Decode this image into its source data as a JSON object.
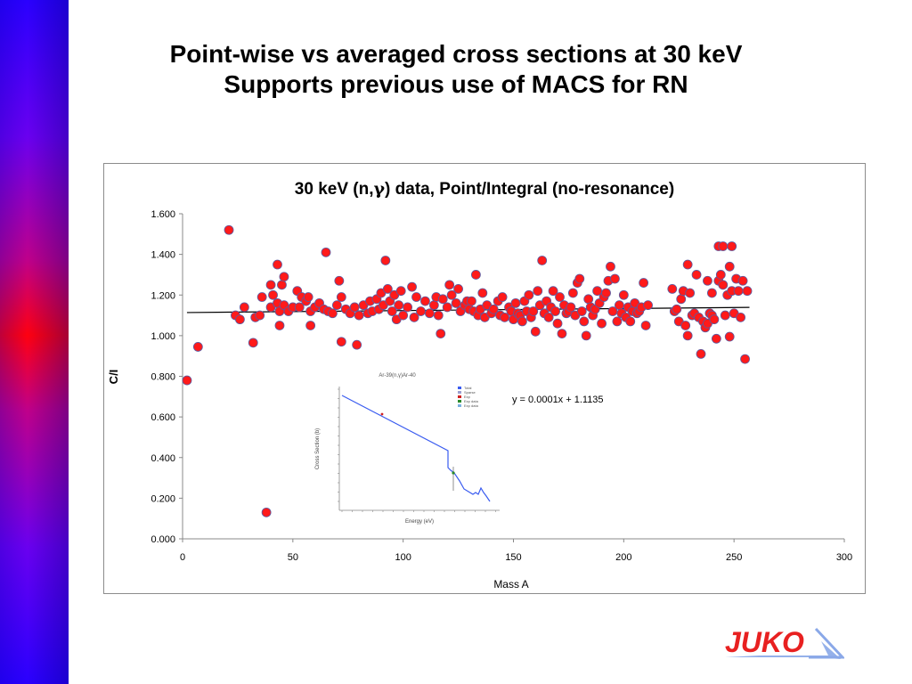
{
  "slide": {
    "title_line1": "Point-wise vs averaged cross sections at 30 keV",
    "title_line2": "Supports previous use of MACS for RN",
    "logo_text": "JUKO"
  },
  "colors": {
    "marker": "#ff1a1a",
    "marker_edge": "#5a5aa0",
    "trend": "#000000",
    "inset_line": "#3a5cf0",
    "logo": "#e82020"
  },
  "chart_data": {
    "type": "scatter",
    "title_pre": "30 keV (n,",
    "title_gamma": "γ",
    "title_post": ") data, Point/Integral (no-resonance)",
    "xlabel": "Mass A",
    "ylabel": "C/I",
    "xlim": [
      0,
      300
    ],
    "ylim": [
      0,
      1.6
    ],
    "xticks": [
      "0",
      "50",
      "100",
      "150",
      "200",
      "250",
      "300"
    ],
    "yticks": [
      "0.000",
      "0.200",
      "0.400",
      "0.600",
      "0.800",
      "1.000",
      "1.200",
      "1.400",
      "1.600"
    ],
    "trendline": {
      "equation": "y = 0.0001x + 1.1135",
      "x": [
        2,
        257
      ],
      "y": [
        1.1137,
        1.1392
      ]
    },
    "points": [
      [
        2,
        0.78
      ],
      [
        7,
        0.945
      ],
      [
        21,
        1.52
      ],
      [
        24,
        1.1
      ],
      [
        26,
        1.08
      ],
      [
        28,
        1.14
      ],
      [
        32,
        0.965
      ],
      [
        33,
        1.09
      ],
      [
        35,
        1.1
      ],
      [
        36,
        1.19
      ],
      [
        38,
        0.13
      ],
      [
        40,
        1.14
      ],
      [
        40,
        1.25
      ],
      [
        41,
        1.2
      ],
      [
        43,
        1.16
      ],
      [
        43,
        1.35
      ],
      [
        44,
        1.05
      ],
      [
        44,
        1.12
      ],
      [
        45,
        1.25
      ],
      [
        46,
        1.29
      ],
      [
        46,
        1.15
      ],
      [
        48,
        1.12
      ],
      [
        50,
        1.14
      ],
      [
        52,
        1.22
      ],
      [
        53,
        1.14
      ],
      [
        54,
        1.19
      ],
      [
        56,
        1.17
      ],
      [
        57,
        1.19
      ],
      [
        58,
        1.05
      ],
      [
        58,
        1.12
      ],
      [
        60,
        1.14
      ],
      [
        62,
        1.16
      ],
      [
        64,
        1.13
      ],
      [
        65,
        1.41
      ],
      [
        66,
        1.12
      ],
      [
        68,
        1.11
      ],
      [
        70,
        1.15
      ],
      [
        71,
        1.27
      ],
      [
        72,
        1.19
      ],
      [
        72,
        0.97
      ],
      [
        74,
        1.13
      ],
      [
        76,
        1.11
      ],
      [
        78,
        1.14
      ],
      [
        79,
        0.955
      ],
      [
        80,
        1.1
      ],
      [
        82,
        1.15
      ],
      [
        84,
        1.11
      ],
      [
        85,
        1.17
      ],
      [
        86,
        1.12
      ],
      [
        88,
        1.18
      ],
      [
        89,
        1.13
      ],
      [
        90,
        1.21
      ],
      [
        91,
        1.15
      ],
      [
        92,
        1.37
      ],
      [
        93,
        1.23
      ],
      [
        94,
        1.17
      ],
      [
        95,
        1.12
      ],
      [
        96,
        1.2
      ],
      [
        97,
        1.08
      ],
      [
        98,
        1.15
      ],
      [
        99,
        1.22
      ],
      [
        100,
        1.1
      ],
      [
        102,
        1.14
      ],
      [
        104,
        1.24
      ],
      [
        105,
        1.09
      ],
      [
        106,
        1.19
      ],
      [
        108,
        1.12
      ],
      [
        110,
        1.17
      ],
      [
        112,
        1.11
      ],
      [
        114,
        1.15
      ],
      [
        115,
        1.19
      ],
      [
        116,
        1.1
      ],
      [
        117,
        1.01
      ],
      [
        118,
        1.18
      ],
      [
        120,
        1.14
      ],
      [
        121,
        1.25
      ],
      [
        122,
        1.2
      ],
      [
        124,
        1.16
      ],
      [
        125,
        1.23
      ],
      [
        126,
        1.12
      ],
      [
        128,
        1.15
      ],
      [
        129,
        1.17
      ],
      [
        130,
        1.13
      ],
      [
        131,
        1.17
      ],
      [
        132,
        1.12
      ],
      [
        133,
        1.3
      ],
      [
        134,
        1.1
      ],
      [
        135,
        1.13
      ],
      [
        136,
        1.21
      ],
      [
        137,
        1.09
      ],
      [
        138,
        1.15
      ],
      [
        140,
        1.11
      ],
      [
        141,
        1.13
      ],
      [
        143,
        1.17
      ],
      [
        144,
        1.1
      ],
      [
        145,
        1.19
      ],
      [
        146,
        1.09
      ],
      [
        148,
        1.14
      ],
      [
        149,
        1.12
      ],
      [
        150,
        1.08
      ],
      [
        151,
        1.16
      ],
      [
        152,
        1.11
      ],
      [
        153,
        1.1
      ],
      [
        154,
        1.07
      ],
      [
        155,
        1.17
      ],
      [
        156,
        1.12
      ],
      [
        157,
        1.2
      ],
      [
        158,
        1.09
      ],
      [
        159,
        1.12
      ],
      [
        160,
        1.02
      ],
      [
        161,
        1.22
      ],
      [
        162,
        1.15
      ],
      [
        163,
        1.37
      ],
      [
        164,
        1.11
      ],
      [
        165,
        1.17
      ],
      [
        166,
        1.09
      ],
      [
        167,
        1.14
      ],
      [
        168,
        1.22
      ],
      [
        169,
        1.12
      ],
      [
        170,
        1.06
      ],
      [
        171,
        1.19
      ],
      [
        172,
        1.01
      ],
      [
        173,
        1.15
      ],
      [
        174,
        1.11
      ],
      [
        175,
        1.12
      ],
      [
        176,
        1.14
      ],
      [
        177,
        1.21
      ],
      [
        178,
        1.1
      ],
      [
        179,
        1.26
      ],
      [
        180,
        1.28
      ],
      [
        181,
        1.12
      ],
      [
        182,
        1.07
      ],
      [
        183,
        1.0
      ],
      [
        184,
        1.18
      ],
      [
        185,
        1.14
      ],
      [
        186,
        1.1
      ],
      [
        187,
        1.13
      ],
      [
        188,
        1.22
      ],
      [
        189,
        1.16
      ],
      [
        190,
        1.06
      ],
      [
        191,
        1.19
      ],
      [
        192,
        1.21
      ],
      [
        193,
        1.27
      ],
      [
        194,
        1.34
      ],
      [
        195,
        1.12
      ],
      [
        196,
        1.28
      ],
      [
        197,
        1.07
      ],
      [
        198,
        1.15
      ],
      [
        199,
        1.11
      ],
      [
        200,
        1.2
      ],
      [
        201,
        1.09
      ],
      [
        202,
        1.14
      ],
      [
        203,
        1.07
      ],
      [
        204,
        1.12
      ],
      [
        205,
        1.16
      ],
      [
        206,
        1.11
      ],
      [
        207,
        1.12
      ],
      [
        208,
        1.14
      ],
      [
        209,
        1.26
      ],
      [
        210,
        1.05
      ],
      [
        211,
        1.15
      ],
      [
        222,
        1.23
      ],
      [
        223,
        1.12
      ],
      [
        224,
        1.13
      ],
      [
        225,
        1.07
      ],
      [
        226,
        1.18
      ],
      [
        227,
        1.22
      ],
      [
        228,
        1.05
      ],
      [
        229,
        1.35
      ],
      [
        229,
        1.0
      ],
      [
        230,
        1.21
      ],
      [
        231,
        1.1
      ],
      [
        232,
        1.11
      ],
      [
        233,
        1.3
      ],
      [
        234,
        1.09
      ],
      [
        235,
        0.91
      ],
      [
        236,
        1.07
      ],
      [
        237,
        1.04
      ],
      [
        238,
        1.06
      ],
      [
        238,
        1.27
      ],
      [
        239,
        1.11
      ],
      [
        240,
        1.1
      ],
      [
        240,
        1.21
      ],
      [
        241,
        1.08
      ],
      [
        242,
        0.985
      ],
      [
        243,
        1.44
      ],
      [
        243,
        1.27
      ],
      [
        244,
        1.3
      ],
      [
        245,
        1.25
      ],
      [
        245,
        1.44
      ],
      [
        246,
        1.1
      ],
      [
        247,
        1.2
      ],
      [
        248,
        1.34
      ],
      [
        248,
        0.995
      ],
      [
        249,
        1.22
      ],
      [
        249,
        1.44
      ],
      [
        250,
        1.11
      ],
      [
        251,
        1.28
      ],
      [
        252,
        1.22
      ],
      [
        253,
        1.09
      ],
      [
        254,
        1.27
      ],
      [
        255,
        0.885
      ],
      [
        256,
        1.22
      ]
    ],
    "inset": {
      "title": "Ar-39(n,γ)Ar-40",
      "xlabel": "Energy (eV)",
      "ylabel": "Cross Section (b)",
      "legend": [
        "Total",
        "Sparse",
        "Exp",
        "Exp data",
        "Exp data"
      ]
    }
  }
}
